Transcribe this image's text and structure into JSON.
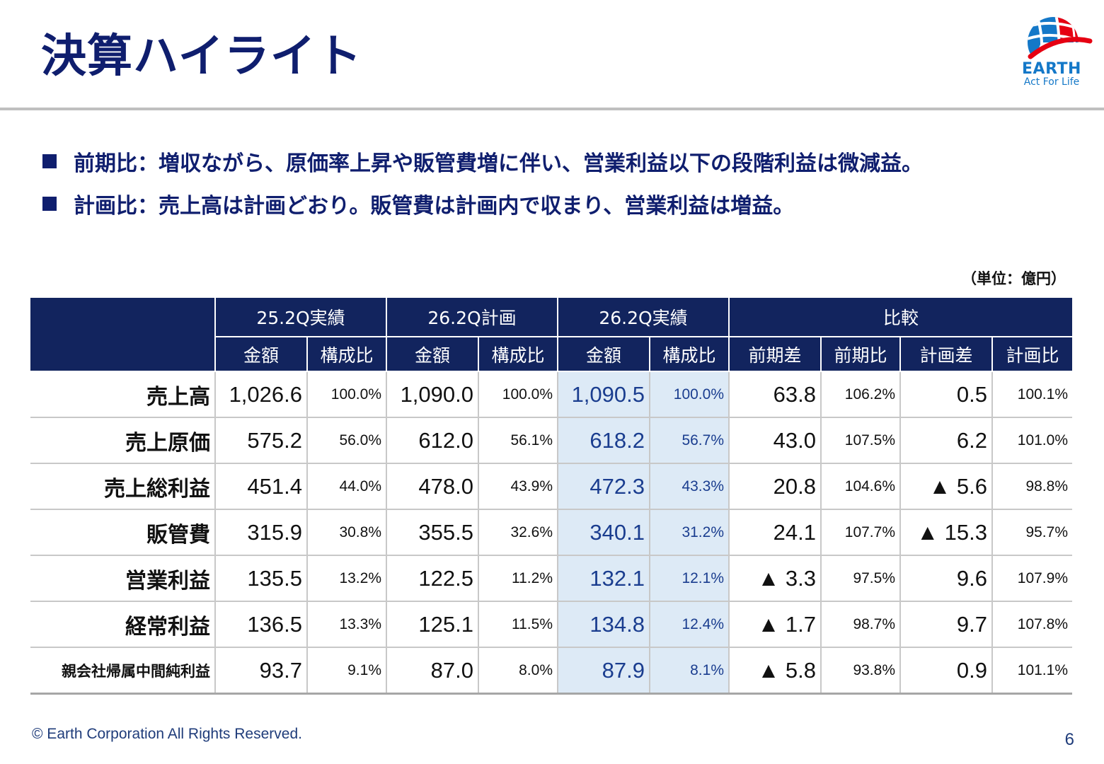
{
  "header": {
    "title": "決算ハイライト",
    "logo_word": "EARTH",
    "logo_tagline": "Act For Life"
  },
  "bullets": [
    "前期比：増収ながら、原価率上昇や販管費増に伴い、営業利益以下の段階利益は微減益。",
    "計画比：売上高は計画どおり。販管費は計画内で収まり、営業利益は増益。"
  ],
  "unit_note": "（単位：億円）",
  "table": {
    "group_headers": [
      "25.2Q実績",
      "26.2Q計画",
      "26.2Q実績",
      "比較"
    ],
    "sub_headers": [
      "金額",
      "構成比",
      "金額",
      "構成比",
      "金額",
      "構成比",
      "前期差",
      "前期比",
      "計画差",
      "計画比"
    ],
    "rows": [
      {
        "label": "売上高",
        "cells": [
          "1,026.6",
          "100.0%",
          "1,090.0",
          "100.0%",
          "1,090.5",
          "100.0%",
          "63.8",
          "106.2%",
          "0.5",
          "100.1%"
        ]
      },
      {
        "label": "売上原価",
        "cells": [
          "575.2",
          "56.0%",
          "612.0",
          "56.1%",
          "618.2",
          "56.7%",
          "43.0",
          "107.5%",
          "6.2",
          "101.0%"
        ]
      },
      {
        "label": "売上総利益",
        "cells": [
          "451.4",
          "44.0%",
          "478.0",
          "43.9%",
          "472.3",
          "43.3%",
          "20.8",
          "104.6%",
          "▲ 5.6",
          "98.8%"
        ]
      },
      {
        "label": "販管費",
        "cells": [
          "315.9",
          "30.8%",
          "355.5",
          "32.6%",
          "340.1",
          "31.2%",
          "24.1",
          "107.7%",
          "▲ 15.3",
          "95.7%"
        ]
      },
      {
        "label": "営業利益",
        "cells": [
          "135.5",
          "13.2%",
          "122.5",
          "11.2%",
          "132.1",
          "12.1%",
          "▲ 3.3",
          "97.5%",
          "9.6",
          "107.9%"
        ]
      },
      {
        "label": "経常利益",
        "cells": [
          "136.5",
          "13.3%",
          "125.1",
          "11.5%",
          "134.8",
          "12.4%",
          "▲ 1.7",
          "98.7%",
          "9.7",
          "107.8%"
        ]
      },
      {
        "label": "親会社帰属中間純利益",
        "cells": [
          "93.7",
          "9.1%",
          "87.0",
          "8.0%",
          "87.9",
          "8.1%",
          "▲ 5.8",
          "93.8%",
          "0.9",
          "101.1%"
        ]
      }
    ]
  },
  "footer": {
    "copyright": "© Earth Corporation   All Rights Reserved.",
    "page_number": "6"
  },
  "colors": {
    "title": "#0f1e6e",
    "table_header": "#12245e",
    "highlight_bg": "#ddeaf6",
    "highlight_text": "#1a3d8f",
    "logo_blue": "#1478c8",
    "logo_red": "#e60012"
  }
}
